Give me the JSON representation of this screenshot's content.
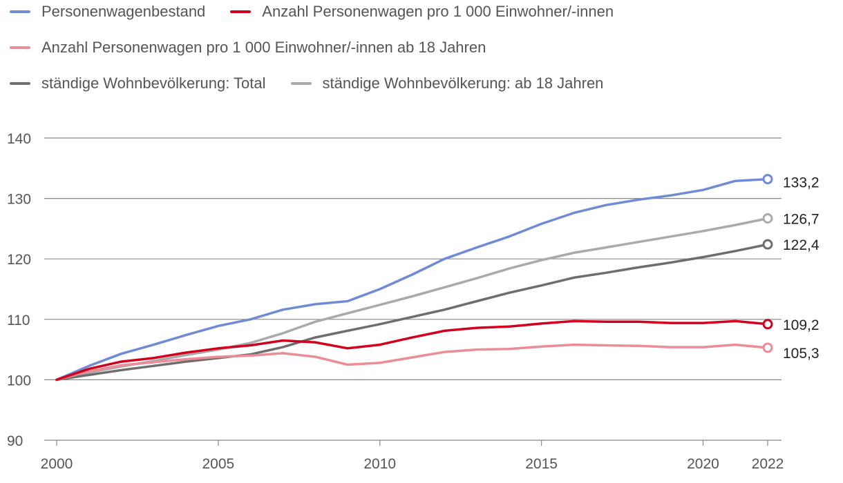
{
  "chart_data": {
    "type": "line",
    "title": "",
    "xlabel": "",
    "ylabel": "",
    "ylim": [
      90,
      140
    ],
    "yticks": [
      90,
      100,
      110,
      120,
      130,
      140
    ],
    "xlim": [
      2000,
      2022
    ],
    "xticks": [
      2000,
      2005,
      2010,
      2015,
      2020,
      2022
    ],
    "grid": "horizontal",
    "legend_position": "top-left",
    "x": [
      2000,
      2001,
      2002,
      2003,
      2004,
      2005,
      2006,
      2007,
      2008,
      2009,
      2010,
      2011,
      2012,
      2013,
      2014,
      2015,
      2016,
      2017,
      2018,
      2019,
      2020,
      2021,
      2022
    ],
    "series": [
      {
        "name": "Personenwagenbestand",
        "color": "#6f8bd6",
        "end_label": "133,2",
        "values": [
          100,
          102.3,
          104.3,
          105.8,
          107.4,
          108.9,
          110.0,
          111.6,
          112.5,
          113.0,
          115.0,
          117.4,
          120.0,
          121.9,
          123.7,
          125.8,
          127.6,
          128.9,
          129.8,
          130.5,
          131.4,
          132.9,
          133.2
        ]
      },
      {
        "name": "Anzahl Personenwagen pro 1 000 Einwohner/-innen",
        "color": "#d2001c",
        "end_label": "109,2",
        "values": [
          100,
          101.8,
          103.0,
          103.6,
          104.5,
          105.2,
          105.7,
          106.5,
          106.2,
          105.2,
          105.8,
          107.0,
          108.1,
          108.6,
          108.8,
          109.3,
          109.7,
          109.6,
          109.6,
          109.4,
          109.4,
          109.7,
          109.2
        ]
      },
      {
        "name": "Anzahl Personenwagen pro 1 000 Einwohner/-innen ab 18 Jahren",
        "color": "#eb8c96",
        "end_label": "105,3",
        "values": [
          100,
          101.4,
          102.4,
          102.9,
          103.4,
          103.8,
          104.0,
          104.4,
          103.8,
          102.5,
          102.8,
          103.7,
          104.6,
          105.0,
          105.1,
          105.5,
          105.8,
          105.7,
          105.6,
          105.4,
          105.4,
          105.8,
          105.3
        ]
      },
      {
        "name": "ständige Wohnbevölkerung: Total",
        "color": "#6e6e6e",
        "end_label": "122,4",
        "values": [
          100,
          100.8,
          101.6,
          102.3,
          103.0,
          103.6,
          104.2,
          105.4,
          107.0,
          108.1,
          109.2,
          110.4,
          111.6,
          113.0,
          114.4,
          115.6,
          116.9,
          117.7,
          118.6,
          119.4,
          120.3,
          121.3,
          122.4
        ]
      },
      {
        "name": "ständige Wohnbevölkerung: ab 18 Jahren",
        "color": "#aaaaaa",
        "end_label": "126,7",
        "values": [
          100,
          101.2,
          102.2,
          103.1,
          104.1,
          105.0,
          106.1,
          107.7,
          109.6,
          111.0,
          112.4,
          113.8,
          115.3,
          116.8,
          118.4,
          119.8,
          121.0,
          121.9,
          122.8,
          123.7,
          124.6,
          125.6,
          126.7
        ]
      }
    ]
  },
  "legend_rows": [
    [
      0,
      1
    ],
    [
      2
    ],
    [
      3,
      4
    ]
  ]
}
